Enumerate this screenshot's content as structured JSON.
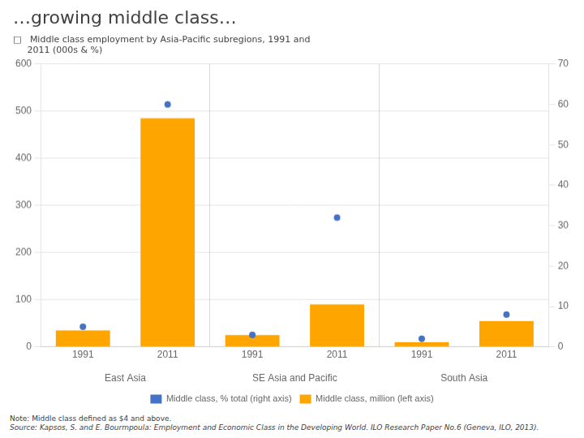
{
  "chart_data": {
    "type": "bar",
    "title": "…growing middle class…",
    "subtitle": [
      "□   Middle class employment by Asia-Pacific subregions, 1991 and",
      "     2011 (000s & %)"
    ],
    "categories": [
      "1991",
      "2011",
      "1991",
      "2011",
      "1991",
      "2011"
    ],
    "x_groups": [
      "East Asia",
      "SE Asia and Pacific",
      "South Asia"
    ],
    "series": [
      {
        "name": "Middle class, million (left axis)",
        "type": "bar",
        "color": "#FFA500",
        "values": [
          35,
          485,
          25,
          90,
          10,
          55
        ]
      },
      {
        "name": "Middle class, % total (right axis)",
        "type": "line",
        "marker": "o",
        "line_style": "none",
        "color": "#4472C4",
        "axis": "y2",
        "values": [
          5,
          60,
          3,
          32,
          2,
          8
        ]
      }
    ],
    "ylim": [
      0,
      600
    ],
    "yticks": [
      0,
      100,
      200,
      300,
      400,
      500,
      600
    ],
    "y2lim": [
      0,
      70
    ],
    "y2ticks": [
      0,
      10,
      20,
      30,
      40,
      50,
      60,
      70
    ],
    "grid": true,
    "legend": "bottom",
    "notes": [
      "Note: Middle class defined as $4 and above.",
      "Source: Kapsos, S. and E. Bourmpoula: Employment and Economic Class in the Developing World. ILO Research Paper No.6 (Geneva, ILO, 2013)."
    ]
  }
}
